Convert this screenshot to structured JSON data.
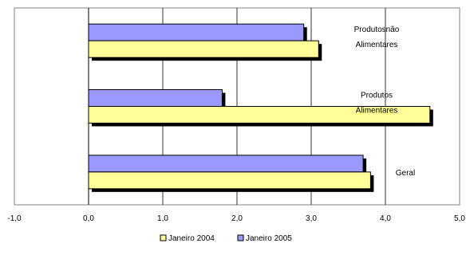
{
  "chart_data": {
    "type": "bar",
    "orientation": "horizontal",
    "title": "",
    "xlabel": "",
    "ylabel": "",
    "xlim": [
      -1,
      5
    ],
    "xticks": [
      "-1,0",
      "0,0",
      "1,0",
      "2,0",
      "3,0",
      "4,0",
      "5,0"
    ],
    "grid": "vertical",
    "legend_position": "bottom",
    "categories": [
      {
        "lines": [
          "Produtosnão",
          "Alimentares"
        ]
      },
      {
        "lines": [
          "Produtos",
          "Alimentares"
        ]
      },
      {
        "lines": [
          "Geral"
        ]
      }
    ],
    "series": [
      {
        "name": "Janeiro 2004",
        "color": "#ffff99",
        "values": [
          3.1,
          4.6,
          3.8
        ]
      },
      {
        "name": "Janeiro 2005",
        "color": "#9999ff",
        "values": [
          2.9,
          1.8,
          3.7
        ]
      }
    ]
  }
}
